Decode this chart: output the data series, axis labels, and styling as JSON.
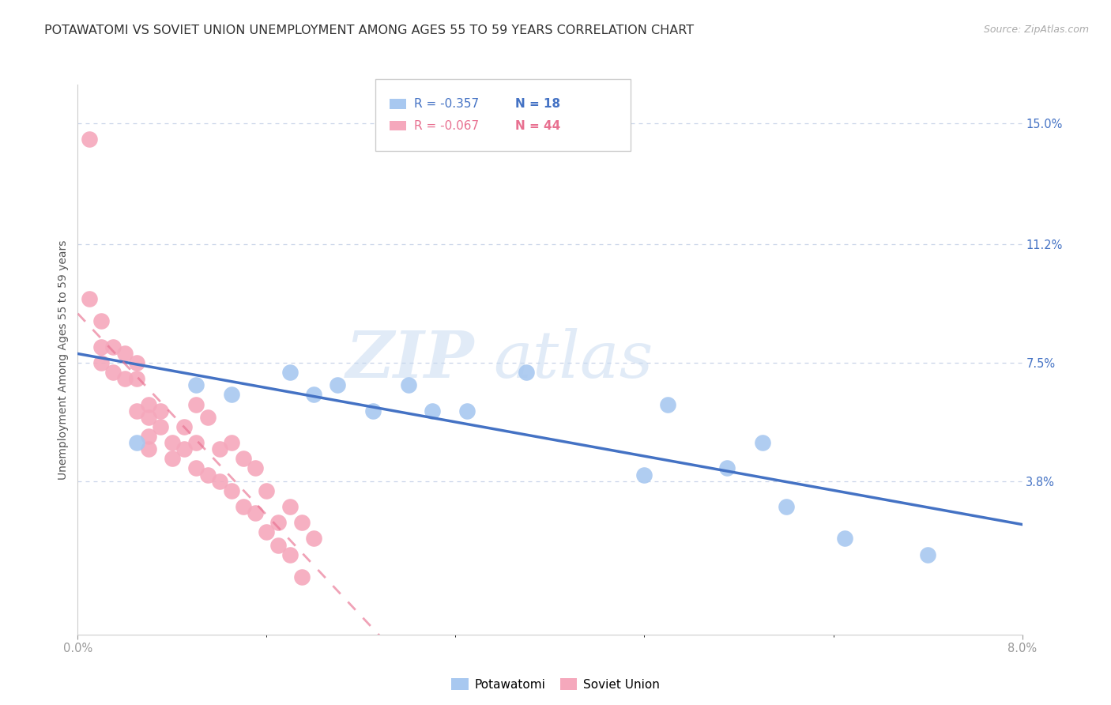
{
  "title": "POTAWATOMI VS SOVIET UNION UNEMPLOYMENT AMONG AGES 55 TO 59 YEARS CORRELATION CHART",
  "source": "Source: ZipAtlas.com",
  "ylabel": "Unemployment Among Ages 55 to 59 years",
  "xlim": [
    0.0,
    0.08
  ],
  "ylim": [
    -0.01,
    0.162
  ],
  "ytick_labels_right": [
    "15.0%",
    "11.2%",
    "7.5%",
    "3.8%"
  ],
  "ytick_positions_right": [
    0.15,
    0.112,
    0.075,
    0.038
  ],
  "potawatomi_color": "#a8c8f0",
  "soviet_color": "#f5a8bc",
  "potawatomi_line_color": "#4472c4",
  "soviet_line_color": "#e87090",
  "legend_potawatomi_R": "-0.357",
  "legend_potawatomi_N": "18",
  "legend_soviet_R": "-0.067",
  "legend_soviet_N": "44",
  "watermark_zip": "ZIP",
  "watermark_atlas": "atlas",
  "grid_color": "#c8d4e8",
  "background_color": "#ffffff",
  "title_fontsize": 11.5,
  "source_fontsize": 9,
  "axis_label_fontsize": 10,
  "tick_fontsize": 10.5,
  "potawatomi_x": [
    0.005,
    0.01,
    0.013,
    0.018,
    0.02,
    0.022,
    0.025,
    0.028,
    0.03,
    0.033,
    0.038,
    0.048,
    0.05,
    0.055,
    0.058,
    0.06,
    0.065,
    0.072
  ],
  "potawatomi_y": [
    0.05,
    0.068,
    0.065,
    0.072,
    0.065,
    0.068,
    0.06,
    0.068,
    0.06,
    0.06,
    0.072,
    0.04,
    0.062,
    0.042,
    0.05,
    0.03,
    0.02,
    0.015
  ],
  "soviet_x": [
    0.001,
    0.001,
    0.002,
    0.002,
    0.002,
    0.003,
    0.003,
    0.004,
    0.004,
    0.005,
    0.005,
    0.005,
    0.006,
    0.006,
    0.006,
    0.006,
    0.007,
    0.007,
    0.008,
    0.008,
    0.009,
    0.009,
    0.01,
    0.01,
    0.01,
    0.011,
    0.011,
    0.012,
    0.012,
    0.013,
    0.013,
    0.014,
    0.014,
    0.015,
    0.015,
    0.016,
    0.016,
    0.017,
    0.017,
    0.018,
    0.018,
    0.019,
    0.019,
    0.02
  ],
  "soviet_y": [
    0.145,
    0.095,
    0.088,
    0.08,
    0.075,
    0.08,
    0.072,
    0.078,
    0.07,
    0.075,
    0.07,
    0.06,
    0.062,
    0.058,
    0.052,
    0.048,
    0.06,
    0.055,
    0.05,
    0.045,
    0.055,
    0.048,
    0.05,
    0.042,
    0.062,
    0.058,
    0.04,
    0.048,
    0.038,
    0.05,
    0.035,
    0.03,
    0.045,
    0.042,
    0.028,
    0.035,
    0.022,
    0.025,
    0.018,
    0.03,
    0.015,
    0.025,
    0.008,
    0.02
  ]
}
